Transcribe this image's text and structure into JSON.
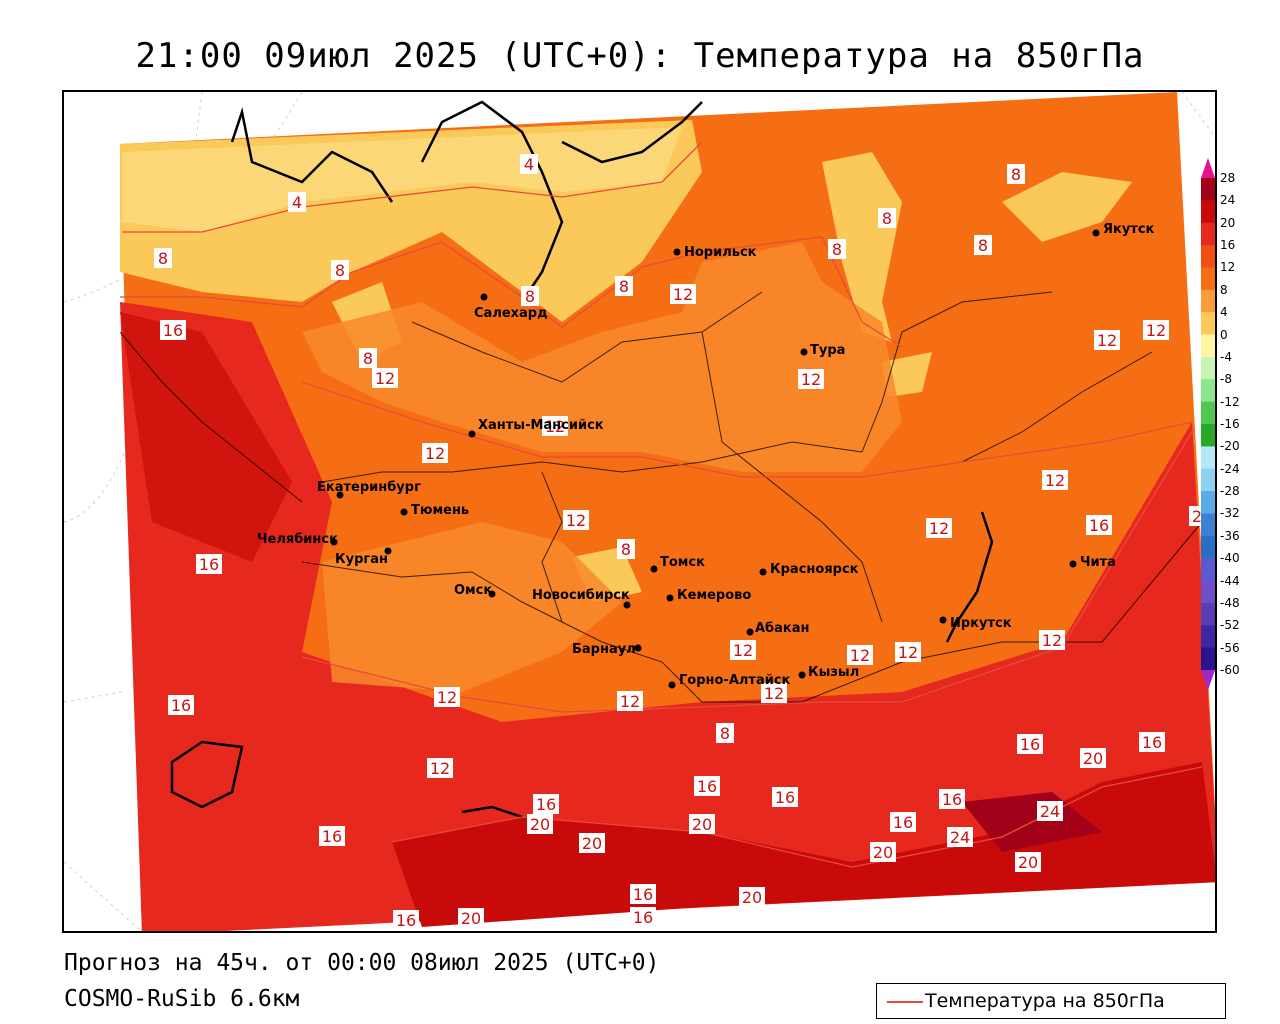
{
  "title": "21:00 09июл 2025 (UTC+0): Температура на 850гПа",
  "footer": {
    "forecast": "Прогноз на 45ч. от 00:00 08июл 2025 (UTC+0)",
    "model": "COSMO-RuSib 6.6км"
  },
  "legend": {
    "line_label": "Температура на 850гПа",
    "line_color": "#e64b3c"
  },
  "colorbar": {
    "levels": [
      "28",
      "24",
      "20",
      "16",
      "12",
      "8",
      "4",
      "0",
      "-4",
      "-8",
      "-12",
      "-16",
      "-20",
      "-24",
      "-28",
      "-32",
      "-36",
      "-40",
      "-44",
      "-48",
      "-52",
      "-56",
      "-60"
    ],
    "colors": [
      "#a3001a",
      "#c80a0a",
      "#e6281e",
      "#f05014",
      "#f56e14",
      "#fb9b3c",
      "#fbc85a",
      "#fff5a0",
      "#c8f5b4",
      "#8ce68c",
      "#50c850",
      "#28aa28",
      "#b4e6f5",
      "#8cd2f0",
      "#5aaae6",
      "#3c82d2",
      "#286ec8",
      "#5a5ad2",
      "#6e50c8",
      "#5a3cb4",
      "#3c28a0",
      "#28148c"
    ],
    "top_color": "#e6148c",
    "bottom_color": "#a028c8"
  },
  "cities": [
    {
      "name": "Салехард"
    },
    {
      "name": "Норильск"
    },
    {
      "name": "Якутск"
    },
    {
      "name": "Тура"
    },
    {
      "name": "Ханты-Мансийск"
    },
    {
      "name": "Екатеринбург"
    },
    {
      "name": "Тюмень"
    },
    {
      "name": "Челябинск"
    },
    {
      "name": "Курган"
    },
    {
      "name": "Омск"
    },
    {
      "name": "Новосибирск"
    },
    {
      "name": "Томск"
    },
    {
      "name": "Кемерово"
    },
    {
      "name": "Красноярск"
    },
    {
      "name": "Барнаул"
    },
    {
      "name": "Абакан"
    },
    {
      "name": "Иркутск"
    },
    {
      "name": "Чита"
    },
    {
      "name": "Горно-Алтайск"
    },
    {
      "name": "Кызыл"
    }
  ],
  "isotherm_labels": [
    "4",
    "4",
    "8",
    "8",
    "8",
    "8",
    "8",
    "8",
    "8",
    "8",
    "8",
    "8",
    "8",
    "12",
    "12",
    "12",
    "12",
    "12",
    "12",
    "12",
    "12",
    "12",
    "12",
    "12",
    "12",
    "12",
    "12",
    "12",
    "12",
    "12",
    "12",
    "16",
    "16",
    "16",
    "16",
    "16",
    "16",
    "16",
    "16",
    "16",
    "16",
    "16",
    "16",
    "16",
    "16",
    "16",
    "20",
    "20",
    "20",
    "20",
    "20",
    "20",
    "20",
    "20",
    "20",
    "24",
    "24"
  ]
}
